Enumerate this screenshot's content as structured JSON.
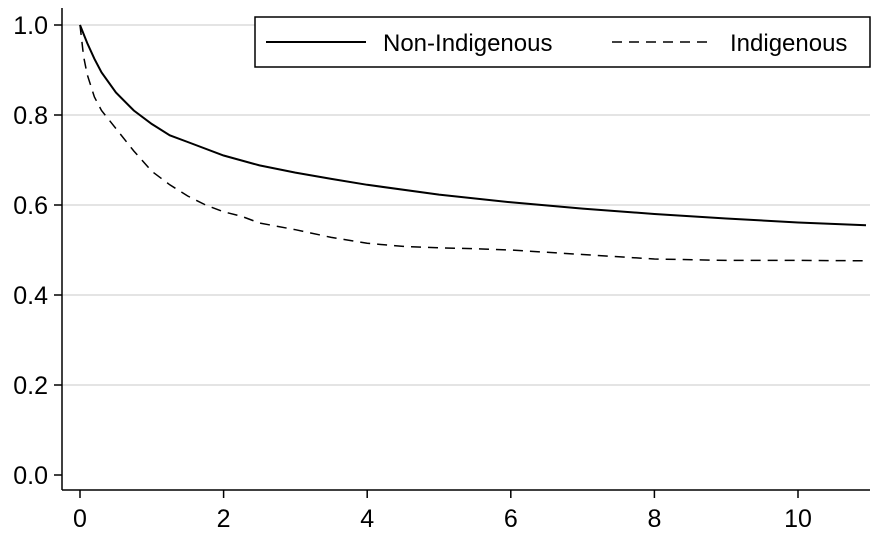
{
  "chart_data": {
    "type": "line",
    "title": "",
    "xlabel": "",
    "ylabel": "",
    "xlim": [
      0,
      11
    ],
    "ylim": [
      0,
      1.0
    ],
    "x_ticks": [
      0,
      2,
      4,
      6,
      8,
      10
    ],
    "x_tick_labels": [
      "0",
      "2",
      "4",
      "6",
      "8",
      "10"
    ],
    "y_ticks": [
      0,
      0.2,
      0.4,
      0.6,
      0.8,
      1.0
    ],
    "y_tick_labels": [
      "0.0",
      "0.2",
      "0.4",
      "0.6",
      "0.8",
      "1.0"
    ],
    "grid": "horizontal",
    "legend_position": "top-right",
    "series": [
      {
        "name": "Non-Indigenous",
        "style": "solid",
        "color": "#000000",
        "x": [
          0,
          0.1,
          0.2,
          0.3,
          0.5,
          0.75,
          1,
          1.25,
          1.5,
          2,
          2.5,
          3,
          3.5,
          4,
          5,
          6,
          7,
          8,
          9,
          10,
          11
        ],
        "y": [
          1.0,
          0.96,
          0.925,
          0.895,
          0.85,
          0.81,
          0.78,
          0.755,
          0.74,
          0.71,
          0.688,
          0.672,
          0.658,
          0.645,
          0.623,
          0.606,
          0.592,
          0.58,
          0.57,
          0.561,
          0.555
        ]
      },
      {
        "name": "Indigenous",
        "style": "dashed",
        "color": "#000000",
        "x": [
          0,
          0.05,
          0.1,
          0.2,
          0.3,
          0.5,
          0.75,
          1,
          1.25,
          1.5,
          1.75,
          2,
          2.25,
          2.5,
          3,
          3.5,
          4,
          4.5,
          5,
          5.5,
          6,
          7,
          8,
          9,
          10,
          11
        ],
        "y": [
          1.0,
          0.93,
          0.89,
          0.84,
          0.81,
          0.77,
          0.72,
          0.675,
          0.645,
          0.62,
          0.6,
          0.585,
          0.575,
          0.56,
          0.545,
          0.528,
          0.515,
          0.508,
          0.505,
          0.503,
          0.5,
          0.49,
          0.48,
          0.477,
          0.477,
          0.476
        ]
      }
    ]
  }
}
